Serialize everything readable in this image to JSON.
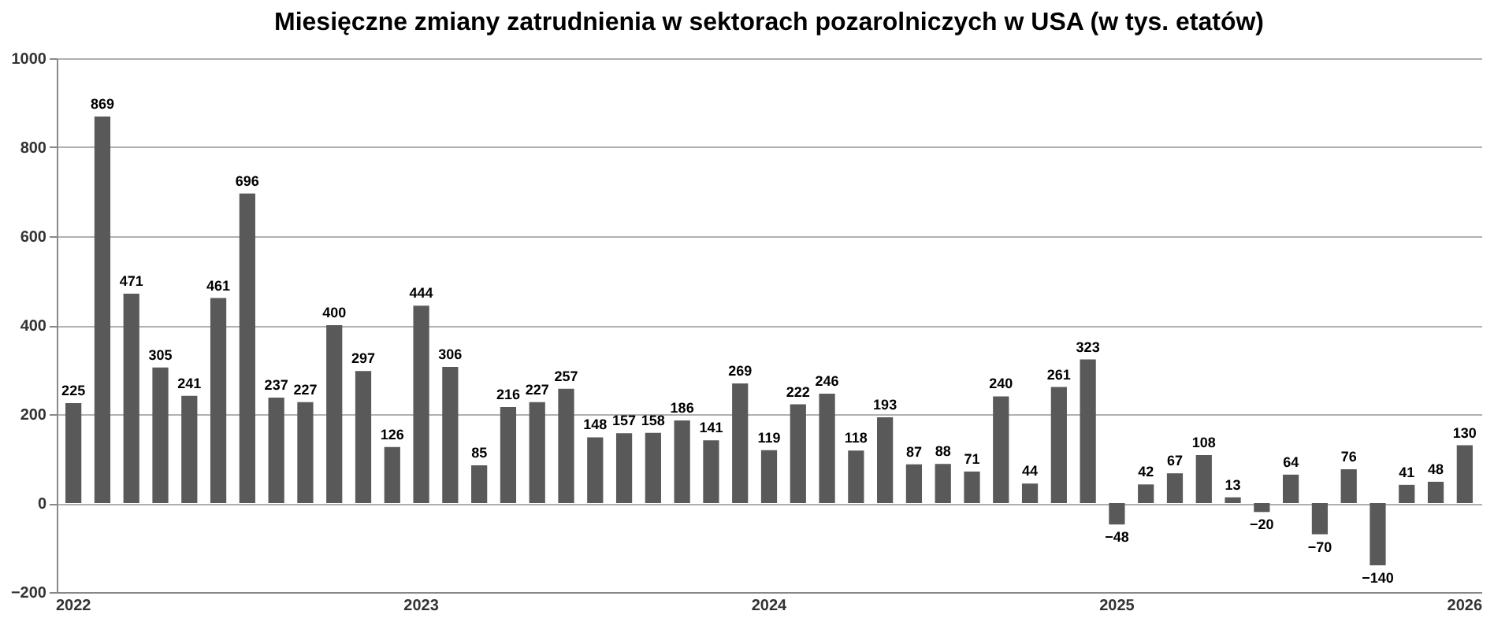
{
  "chart_data": {
    "type": "bar",
    "title": "Miesięczne zmiany zatrudnienia w sektorach pozarolniczych w USA (w tys. etatów)",
    "categories": [
      "2022",
      null,
      null,
      null,
      null,
      null,
      null,
      null,
      null,
      null,
      null,
      null,
      "2023",
      null,
      null,
      null,
      null,
      null,
      null,
      null,
      null,
      null,
      null,
      null,
      "2024",
      null,
      null,
      null,
      null,
      null,
      null,
      null,
      null,
      null,
      null,
      null,
      "2025",
      null,
      null,
      null,
      null,
      null,
      null,
      null,
      null,
      null,
      null,
      null,
      "2026"
    ],
    "values": [
      225,
      869,
      471,
      305,
      241,
      461,
      696,
      237,
      227,
      400,
      297,
      126,
      444,
      306,
      85,
      216,
      227,
      257,
      148,
      157,
      158,
      186,
      141,
      269,
      119,
      222,
      246,
      118,
      193,
      87,
      88,
      71,
      240,
      44,
      261,
      323,
      -48,
      42,
      67,
      108,
      13,
      -20,
      64,
      -70,
      76,
      -140,
      41,
      48,
      130
    ],
    "color": "#595959",
    "ylim": [
      -200,
      1000
    ],
    "yticks": [
      -200,
      0,
      200,
      400,
      600,
      800,
      1000
    ],
    "grid": "y",
    "data_labels": true
  }
}
